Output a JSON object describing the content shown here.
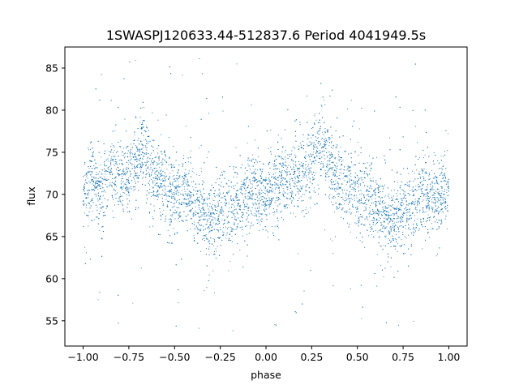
{
  "chart_data": {
    "type": "scatter",
    "title": "1SWASPJ120633.44-512837.6 Period 4041949.5s",
    "xlabel": "phase",
    "ylabel": "flux",
    "xlim": [
      -1.1,
      1.1
    ],
    "ylim": [
      52,
      87.5
    ],
    "xticks": [
      -1.0,
      -0.75,
      -0.5,
      -0.25,
      0.0,
      0.25,
      0.5,
      0.75,
      1.0
    ],
    "xtick_labels": [
      "−1.00",
      "−0.75",
      "−0.50",
      "−0.25",
      "0.00",
      "0.25",
      "0.50",
      "0.75",
      "1.00"
    ],
    "yticks": [
      55,
      60,
      65,
      70,
      75,
      80,
      85
    ],
    "ytick_labels": [
      "55",
      "60",
      "65",
      "70",
      "75",
      "80",
      "85"
    ],
    "grid": false,
    "marker_color": "#1f77b4",
    "series": [
      {
        "points_note_x": "phase",
        "points_note_y": "flux",
        "points": [
          [
            -0.98,
            70.5
          ],
          [
            -0.95,
            71.8
          ],
          [
            -0.9,
            70.2
          ],
          [
            -0.85,
            72.5
          ],
          [
            -0.8,
            73.0
          ],
          [
            -0.75,
            72.2
          ],
          [
            -0.7,
            74.5
          ],
          [
            -0.67,
            76.0
          ],
          [
            -0.62,
            72.0
          ],
          [
            -0.55,
            71.0
          ],
          [
            -0.5,
            69.5
          ],
          [
            -0.45,
            70.5
          ],
          [
            -0.4,
            69.0
          ],
          [
            -0.35,
            68.0
          ],
          [
            -0.3,
            66.5
          ],
          [
            -0.25,
            67.5
          ],
          [
            -0.2,
            68.5
          ],
          [
            -0.15,
            69.0
          ],
          [
            -0.1,
            70.0
          ],
          [
            -0.05,
            70.5
          ],
          [
            0.0,
            70.2
          ],
          [
            0.05,
            70.8
          ],
          [
            0.1,
            71.5
          ],
          [
            0.15,
            72.0
          ],
          [
            0.2,
            72.5
          ],
          [
            0.25,
            73.5
          ],
          [
            0.3,
            76.5
          ],
          [
            0.33,
            75.0
          ],
          [
            0.4,
            71.5
          ],
          [
            0.45,
            71.0
          ],
          [
            0.5,
            70.0
          ],
          [
            0.55,
            69.5
          ],
          [
            0.6,
            69.0
          ],
          [
            0.65,
            67.0
          ],
          [
            0.7,
            66.8
          ],
          [
            0.75,
            68.0
          ],
          [
            0.8,
            68.5
          ],
          [
            0.85,
            69.0
          ],
          [
            0.9,
            69.5
          ],
          [
            0.95,
            70.0
          ],
          [
            0.99,
            70.5
          ]
        ]
      }
    ]
  }
}
